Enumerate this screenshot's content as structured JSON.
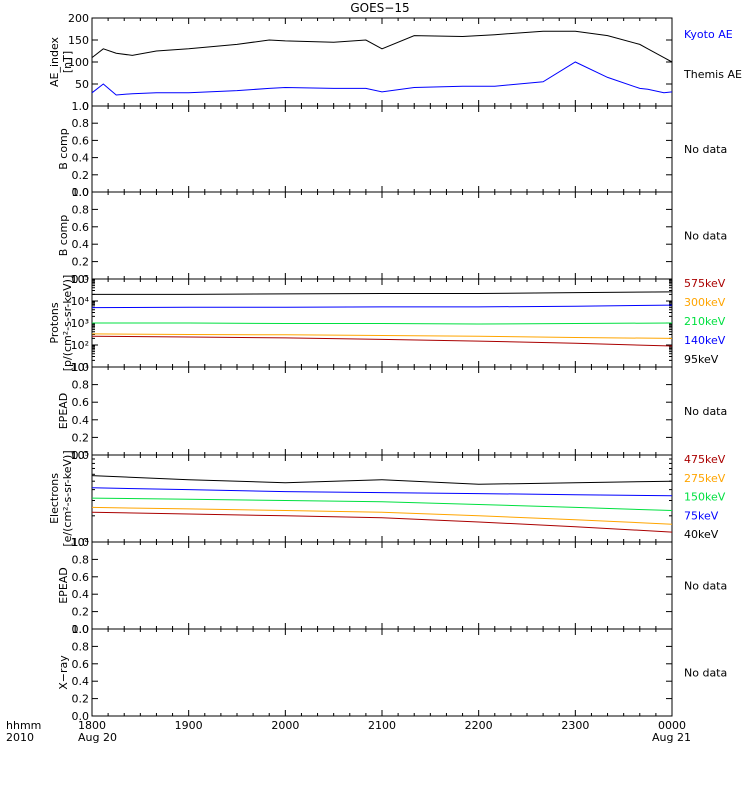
{
  "title": "GOES−15",
  "time_axis": {
    "ticks": [
      "1800",
      "1900",
      "2000",
      "2100",
      "2200",
      "2300",
      "0000"
    ],
    "date_start": "Aug 20",
    "date_end": "Aug 21",
    "corner_label_1": "hhmm",
    "corner_label_2": "2010"
  },
  "no_data_text": "No data",
  "colors": {
    "black": "#000000",
    "blue": "#0000ff",
    "red": "#aa0000",
    "orange": "#ffa500",
    "green": "#00e040"
  },
  "chart_data": [
    {
      "type": "line",
      "panel": "ae",
      "ylabel": "AE_index\n[nT]",
      "ylim": [
        0,
        200
      ],
      "yticks": [
        "0",
        "50",
        "100",
        "150",
        "200"
      ],
      "x": [
        1800,
        1807,
        1815,
        1825,
        1840,
        1900,
        1930,
        1950,
        2000,
        2030,
        2050,
        2100,
        2120,
        2150,
        2210,
        2240,
        2300,
        2320,
        2340,
        2345,
        2355,
        2400
      ],
      "series": [
        {
          "name": "Kyoto AE",
          "color": "#0000ff",
          "values": [
            30,
            50,
            25,
            28,
            30,
            30,
            35,
            40,
            42,
            40,
            40,
            32,
            42,
            45,
            45,
            55,
            100,
            65,
            40,
            38,
            30,
            32
          ]
        },
        {
          "name": "Themis AE",
          "color": "#000000",
          "values": [
            110,
            130,
            120,
            115,
            125,
            130,
            140,
            150,
            148,
            145,
            150,
            130,
            160,
            158,
            162,
            170,
            170,
            160,
            140,
            130,
            110,
            100
          ]
        }
      ]
    },
    {
      "type": "line",
      "panel": "bcomp1",
      "ylabel": "B comp",
      "ylim": [
        0,
        1
      ],
      "yticks": [
        "0.0",
        "0.2",
        "0.4",
        "0.6",
        "0.8",
        "1.0"
      ],
      "series": []
    },
    {
      "type": "line",
      "panel": "bcomp2",
      "ylabel": "B comp",
      "ylim": [
        0,
        1
      ],
      "yticks": [
        "0.0",
        "0.2",
        "0.4",
        "0.6",
        "0.8",
        "1.0"
      ],
      "series": []
    },
    {
      "type": "line",
      "panel": "protons",
      "ylabel": "Protons\n[p/(cm²-s-sr-keV)]",
      "log": true,
      "ylim": [
        10,
        100000
      ],
      "yticks": [
        "10¹",
        "10²",
        "10³",
        "10⁴",
        "10⁵"
      ],
      "x": [
        1800,
        1900,
        2000,
        2100,
        2200,
        2300,
        2400
      ],
      "series": [
        {
          "name": "575keV",
          "color": "#aa0000",
          "values": [
            250,
            230,
            210,
            180,
            150,
            120,
            90
          ]
        },
        {
          "name": "300keV",
          "color": "#ffa500",
          "values": [
            320,
            300,
            290,
            270,
            250,
            220,
            200
          ]
        },
        {
          "name": "210keV",
          "color": "#00e040",
          "values": [
            1000,
            1000,
            950,
            950,
            900,
            950,
            1000
          ]
        },
        {
          "name": "140keV",
          "color": "#0000ff",
          "values": [
            5000,
            5200,
            5200,
            5400,
            5400,
            5800,
            6500
          ]
        },
        {
          "name": "95keV",
          "color": "#000000",
          "values": [
            20000,
            20000,
            21000,
            22000,
            22000,
            24000,
            26000
          ]
        }
      ]
    },
    {
      "type": "line",
      "panel": "epead1",
      "ylabel": "EPEAD",
      "ylim": [
        0,
        1
      ],
      "yticks": [
        "0.0",
        "0.2",
        "0.4",
        "0.6",
        "0.8",
        "1.0"
      ],
      "series": []
    },
    {
      "type": "line",
      "panel": "electrons",
      "ylabel": "Electrons\n[e/(cm²-s-sr-keV)]",
      "log": true,
      "ylim": [
        10000,
        100000
      ],
      "yticks": [
        "10⁴",
        "10⁵"
      ],
      "x": [
        1800,
        1900,
        2000,
        2100,
        2200,
        2300,
        2400
      ],
      "series": [
        {
          "name": "475keV",
          "color": "#aa0000",
          "values": [
            22000,
            21000,
            20000,
            19000,
            17000,
            15000,
            13000
          ]
        },
        {
          "name": "275keV",
          "color": "#ffa500",
          "values": [
            25000,
            24000,
            23000,
            22000,
            20000,
            18000,
            16000
          ]
        },
        {
          "name": "150keV",
          "color": "#00e040",
          "values": [
            32000,
            31000,
            30000,
            29000,
            27000,
            25000,
            23000
          ]
        },
        {
          "name": "75keV",
          "color": "#0000ff",
          "values": [
            42000,
            40000,
            38000,
            37000,
            36000,
            35000,
            34000
          ]
        },
        {
          "name": "40keV",
          "color": "#000000",
          "values": [
            58000,
            52000,
            48000,
            52000,
            46000,
            48000,
            50000
          ]
        }
      ]
    },
    {
      "type": "line",
      "panel": "epead2",
      "ylabel": "EPEAD",
      "ylim": [
        0,
        1
      ],
      "yticks": [
        "0.0",
        "0.2",
        "0.4",
        "0.6",
        "0.8",
        "1.0"
      ],
      "series": []
    },
    {
      "type": "line",
      "panel": "xray",
      "ylabel": "X−ray",
      "ylim": [
        0,
        1
      ],
      "yticks": [
        "0.0",
        "0.2",
        "0.4",
        "0.6",
        "0.8",
        "1.0"
      ],
      "series": []
    }
  ]
}
